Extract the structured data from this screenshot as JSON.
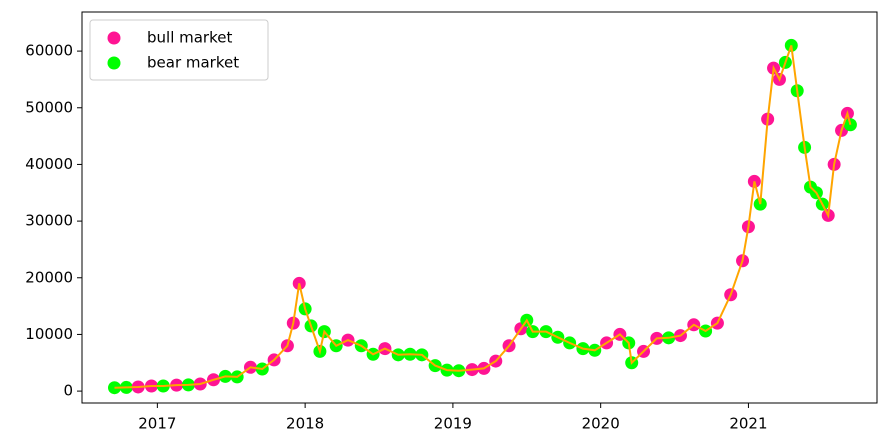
{
  "chart_data": {
    "type": "scatter",
    "x": [
      2016.71,
      2016.79,
      2016.87,
      2016.96,
      2017.04,
      2017.13,
      2017.21,
      2017.29,
      2017.38,
      2017.46,
      2017.54,
      2017.63,
      2017.71,
      2017.79,
      2017.88,
      2017.92,
      2017.96,
      2018.0,
      2018.04,
      2018.1,
      2018.13,
      2018.21,
      2018.29,
      2018.38,
      2018.46,
      2018.54,
      2018.63,
      2018.71,
      2018.79,
      2018.88,
      2018.96,
      2019.04,
      2019.13,
      2019.21,
      2019.29,
      2019.38,
      2019.46,
      2019.5,
      2019.54,
      2019.63,
      2019.71,
      2019.79,
      2019.88,
      2019.96,
      2020.04,
      2020.13,
      2020.19,
      2020.21,
      2020.29,
      2020.38,
      2020.46,
      2020.54,
      2020.63,
      2020.71,
      2020.79,
      2020.88,
      2020.96,
      2021.0,
      2021.04,
      2021.08,
      2021.13,
      2021.17,
      2021.21,
      2021.25,
      2021.29,
      2021.33,
      2021.38,
      2021.42,
      2021.46,
      2021.5,
      2021.54,
      2021.58,
      2021.63,
      2021.67,
      2021.69
    ],
    "series": [
      {
        "name": "bull market",
        "color": "#ff1493",
        "values": [
          null,
          null,
          730,
          900,
          null,
          1050,
          null,
          1250,
          2000,
          null,
          null,
          4200,
          null,
          5500,
          8000,
          12000,
          19000,
          null,
          null,
          null,
          null,
          null,
          9000,
          null,
          null,
          7500,
          null,
          null,
          null,
          null,
          null,
          null,
          3800,
          4000,
          5300,
          8000,
          11000,
          null,
          null,
          null,
          null,
          null,
          null,
          null,
          8500,
          10000,
          null,
          null,
          7000,
          9300,
          null,
          9800,
          11700,
          null,
          12000,
          17000,
          23000,
          29000,
          37000,
          null,
          48000,
          57000,
          55000,
          null,
          null,
          null,
          null,
          null,
          null,
          null,
          31000,
          40000,
          46000,
          49000,
          null
        ]
      },
      {
        "name": "bear market",
        "color": "#00ff00",
        "values": [
          600,
          650,
          null,
          null,
          900,
          null,
          1100,
          null,
          null,
          2600,
          2500,
          null,
          3900,
          null,
          null,
          null,
          null,
          14500,
          11500,
          7000,
          10500,
          8000,
          null,
          8000,
          6500,
          null,
          6400,
          6500,
          6400,
          4500,
          3700,
          3600,
          null,
          null,
          null,
          null,
          null,
          12500,
          10500,
          10500,
          9500,
          8500,
          7500,
          7200,
          null,
          null,
          8500,
          5000,
          null,
          null,
          9400,
          null,
          null,
          10600,
          null,
          null,
          null,
          null,
          null,
          33000,
          null,
          null,
          null,
          58000,
          61000,
          53000,
          43000,
          36000,
          35000,
          33000,
          null,
          null,
          null,
          null,
          47000
        ]
      }
    ],
    "line_color": "#ffa500",
    "xlim": [
      2016.49,
      2021.87
    ],
    "xticks": [
      2017,
      2018,
      2019,
      2020,
      2021
    ],
    "ylim": [
      -2100,
      66900
    ],
    "yticks": [
      0,
      10000,
      20000,
      30000,
      40000,
      50000,
      60000
    ],
    "grid": false,
    "legend": "upper left"
  }
}
